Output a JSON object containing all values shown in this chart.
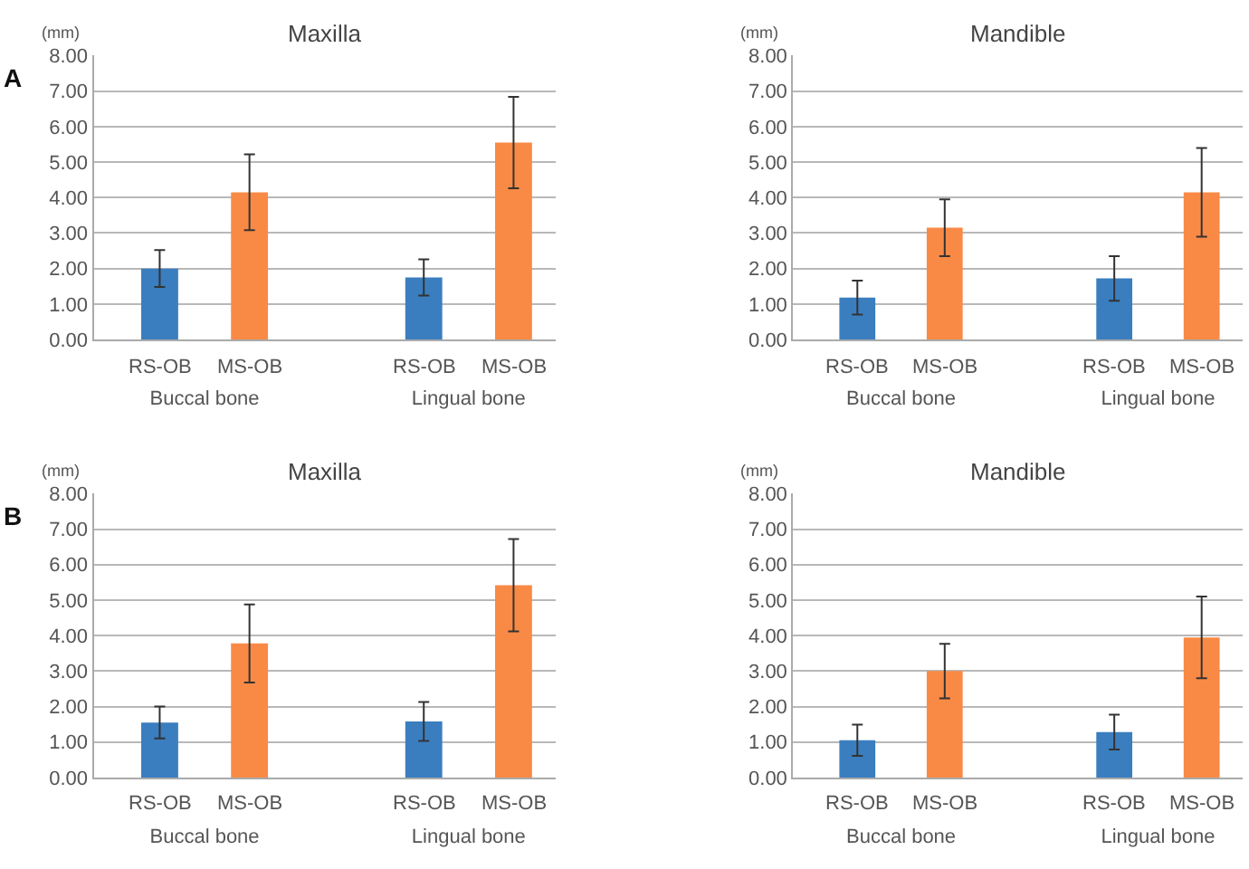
{
  "chart_data": [
    {
      "type": "bar",
      "title": "Maxilla",
      "ylabel": "(mm)",
      "categories": [
        "Buccal bone",
        "Lingual bone"
      ],
      "series": [
        {
          "name": "RS-OB",
          "color": "#3a7ebf",
          "values": [
            2.0,
            1.75
          ],
          "errors": [
            0.52,
            0.51
          ]
        },
        {
          "name": "MS-OB",
          "color": "#f98a45",
          "values": [
            4.15,
            5.55
          ],
          "errors": [
            1.07,
            1.29
          ]
        }
      ],
      "ylim": [
        0,
        8
      ],
      "yticks": [
        {
          "value": 0,
          "label": "0.00"
        },
        {
          "value": 1,
          "label": "1.00"
        },
        {
          "value": 2,
          "label": "2.00"
        },
        {
          "value": 3,
          "label": "3.00"
        },
        {
          "value": 4,
          "label": "4.00"
        },
        {
          "value": 5,
          "label": "5.00"
        },
        {
          "value": 6,
          "label": "6.00"
        },
        {
          "value": 7,
          "label": "7.00"
        },
        {
          "value": 8,
          "label": "8.00"
        }
      ],
      "grid": "y",
      "annotations": [
        "A"
      ]
    },
    {
      "type": "bar",
      "title": "Mandible",
      "ylabel": "(mm)",
      "categories": [
        "Buccal bone",
        "Lingual bone"
      ],
      "series": [
        {
          "name": "RS-OB",
          "color": "#3a7ebf",
          "values": [
            1.18,
            1.72
          ],
          "errors": [
            0.48,
            0.63
          ]
        },
        {
          "name": "MS-OB",
          "color": "#f98a45",
          "values": [
            3.15,
            4.15
          ],
          "errors": [
            0.8,
            1.25
          ]
        }
      ],
      "ylim": [
        0,
        8
      ],
      "yticks": [
        {
          "value": 0,
          "label": "0.00"
        },
        {
          "value": 1,
          "label": "1.00"
        },
        {
          "value": 2,
          "label": "2.00"
        },
        {
          "value": 3,
          "label": "3.00"
        },
        {
          "value": 4,
          "label": "4.00"
        },
        {
          "value": 5,
          "label": "5.00"
        },
        {
          "value": 6,
          "label": "6.00"
        },
        {
          "value": 7,
          "label": "7.00"
        },
        {
          "value": 8,
          "label": "8.00"
        }
      ],
      "grid": "y"
    },
    {
      "type": "bar",
      "title": "Maxilla",
      "ylabel": "(mm)",
      "categories": [
        "Buccal bone",
        "Lingual bone"
      ],
      "series": [
        {
          "name": "RS-OB",
          "color": "#3a7ebf",
          "values": [
            1.55,
            1.58
          ],
          "errors": [
            0.45,
            0.55
          ]
        },
        {
          "name": "MS-OB",
          "color": "#f98a45",
          "values": [
            3.78,
            5.42
          ],
          "errors": [
            1.1,
            1.3
          ]
        }
      ],
      "ylim": [
        0,
        8
      ],
      "yticks": [
        {
          "value": 0,
          "label": "0.00"
        },
        {
          "value": 1,
          "label": "1.00"
        },
        {
          "value": 2,
          "label": "2.00"
        },
        {
          "value": 3,
          "label": "3.00"
        },
        {
          "value": 4,
          "label": "4.00"
        },
        {
          "value": 5,
          "label": "5.00"
        },
        {
          "value": 6,
          "label": "6.00"
        },
        {
          "value": 7,
          "label": "7.00"
        },
        {
          "value": 8,
          "label": "8.00"
        }
      ],
      "grid": "y",
      "annotations": [
        "B"
      ]
    },
    {
      "type": "bar",
      "title": "Mandible",
      "ylabel": "(mm)",
      "categories": [
        "Buccal bone",
        "Lingual bone"
      ],
      "series": [
        {
          "name": "RS-OB",
          "color": "#3a7ebf",
          "values": [
            1.05,
            1.28
          ],
          "errors": [
            0.44,
            0.49
          ]
        },
        {
          "name": "MS-OB",
          "color": "#f98a45",
          "values": [
            3.0,
            3.95
          ],
          "errors": [
            0.77,
            1.15
          ]
        }
      ],
      "ylim": [
        0,
        8
      ],
      "yticks": [
        {
          "value": 0,
          "label": "0.00"
        },
        {
          "value": 1,
          "label": "1.00"
        },
        {
          "value": 2,
          "label": "2.00"
        },
        {
          "value": 3,
          "label": "3.00"
        },
        {
          "value": 4,
          "label": "4.00"
        },
        {
          "value": 5,
          "label": "5.00"
        },
        {
          "value": 6,
          "label": "6.00"
        },
        {
          "value": 7,
          "label": "7.00"
        },
        {
          "value": 8,
          "label": "8.00"
        }
      ],
      "grid": "y"
    }
  ]
}
